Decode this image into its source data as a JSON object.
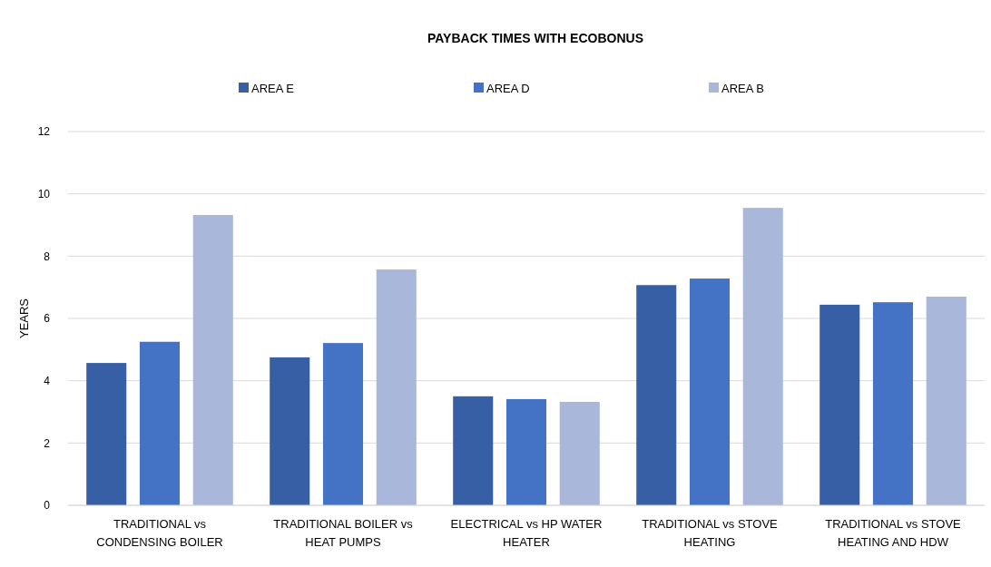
{
  "chart_data": {
    "type": "bar",
    "title": "PAYBACK TIMES WITH ECOBONUS",
    "ylabel": "YEARS",
    "categories": [
      "TRADITIONAL vs CONDENSING BOILER",
      "TRADITIONAL BOILER vs HEAT PUMPS",
      "ELECTRICAL vs HP  WATER HEATER",
      "TRADITIONAL vs STOVE HEATING",
      "TRADITIONAL vs STOVE HEATING AND HDW"
    ],
    "series": [
      {
        "name": "AREA E",
        "color": "#365fa5",
        "values": [
          4.57,
          4.75,
          3.5,
          7.07,
          6.44
        ]
      },
      {
        "name": "AREA D",
        "color": "#4472c4",
        "values": [
          5.25,
          5.21,
          3.41,
          7.28,
          6.52
        ]
      },
      {
        "name": "AREA B",
        "color": "#a9b7db",
        "values": [
          9.32,
          7.57,
          3.32,
          9.55,
          6.7
        ]
      }
    ],
    "ylim": [
      0,
      12
    ],
    "yticks": [
      0,
      2,
      4,
      6,
      8,
      10,
      12
    ],
    "grid": "y",
    "legend": "top"
  }
}
